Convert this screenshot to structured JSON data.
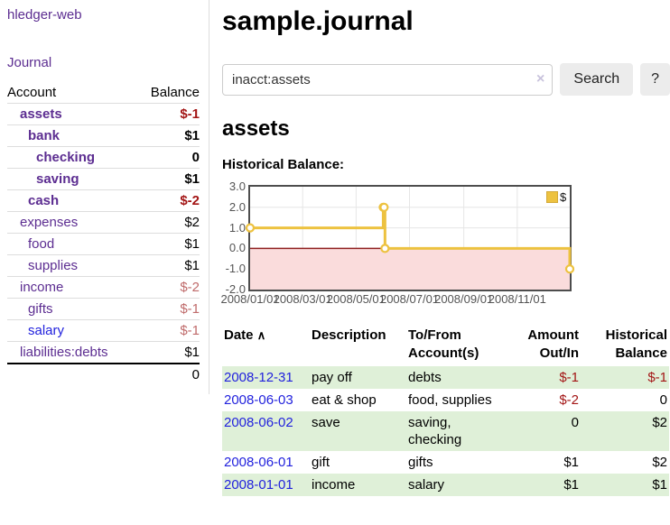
{
  "app": {
    "title": "hledger-web"
  },
  "sidebar": {
    "journal_label": "Journal",
    "accounts": {
      "header_account": "Account",
      "header_balance": "Balance",
      "rows": [
        {
          "name": "assets",
          "balance": "$-1"
        },
        {
          "name": "bank",
          "balance": "$1"
        },
        {
          "name": "checking",
          "balance": "0"
        },
        {
          "name": "saving",
          "balance": "$1"
        },
        {
          "name": "cash",
          "balance": "$-2"
        },
        {
          "name": "expenses",
          "balance": "$2"
        },
        {
          "name": "food",
          "balance": "$1"
        },
        {
          "name": "supplies",
          "balance": "$1"
        },
        {
          "name": "income",
          "balance": "$-2"
        },
        {
          "name": "gifts",
          "balance": "$-1"
        },
        {
          "name": "salary",
          "balance": "$-1"
        },
        {
          "name": "liabilities:debts",
          "balance": "$1"
        }
      ],
      "total": "0"
    }
  },
  "main": {
    "title": "sample.journal",
    "search": {
      "value": "inacct:assets",
      "clear_icon": "×",
      "button_label": "Search",
      "help_label": "?"
    },
    "account_heading": "assets",
    "chart_label": "Historical Balance:"
  },
  "register": {
    "headers": {
      "date": "Date",
      "sort_icon": "∧",
      "description": "Description",
      "accounts": "To/From Account(s)",
      "amount": "Amount Out/In",
      "balance": "Historical Balance"
    },
    "rows": [
      {
        "date": "2008-12-31",
        "description": "pay off",
        "accounts": "debts",
        "amount": "$-1",
        "balance": "$-1"
      },
      {
        "date": "2008-06-03",
        "description": "eat & shop",
        "accounts": "food, supplies",
        "amount": "$-2",
        "balance": "0"
      },
      {
        "date": "2008-06-02",
        "description": "save",
        "accounts": "saving, checking",
        "amount": "0",
        "balance": "$2"
      },
      {
        "date": "2008-06-01",
        "description": "gift",
        "accounts": "gifts",
        "amount": "$1",
        "balance": "$2"
      },
      {
        "date": "2008-01-01",
        "description": "income",
        "accounts": "salary",
        "amount": "$1",
        "balance": "$1"
      }
    ]
  },
  "chart_data": {
    "type": "line",
    "subtype": "step",
    "title": "Historical Balance:",
    "legend": [
      {
        "label": "$",
        "color": "#edc240"
      }
    ],
    "x_range": [
      "2008-01-01",
      "2008-12-31"
    ],
    "ylim": [
      -2,
      3
    ],
    "y_ticks": [
      "3.0",
      "2.0",
      "1.0",
      "0.0",
      "-1.0",
      "-2.0"
    ],
    "x_ticks": [
      {
        "date": "2008-01-01",
        "label": "2008/01/01"
      },
      {
        "date": "2008-03-01",
        "label": "2008/03/01"
      },
      {
        "date": "2008-05-01",
        "label": "2008/05/01"
      },
      {
        "date": "2008-07-01",
        "label": "2008/07/01"
      },
      {
        "date": "2008-09-01",
        "label": "2008/09/01"
      },
      {
        "date": "2008-11-01",
        "label": "2008/11/01"
      }
    ],
    "series": [
      {
        "name": "$",
        "color": "#edc240",
        "points": [
          {
            "x": "2008-01-01",
            "y": 1
          },
          {
            "x": "2008-06-01",
            "y": 2
          },
          {
            "x": "2008-06-02",
            "y": 2
          },
          {
            "x": "2008-06-03",
            "y": 0
          },
          {
            "x": "2008-12-31",
            "y": -1
          }
        ]
      }
    ],
    "grid": true,
    "negative_region_color": "#fadcdc",
    "zero_line_color": "#8f1f1f"
  },
  "colors": {
    "link_purple": "#5c2d91",
    "link_blue": "#2222dd",
    "negative_strong": "#a31515",
    "negative_soft": "#bf6a6a",
    "row_stripe_green": "#dff0d8",
    "series_yellow": "#edc240",
    "chart_border": "#4d4d4d"
  }
}
